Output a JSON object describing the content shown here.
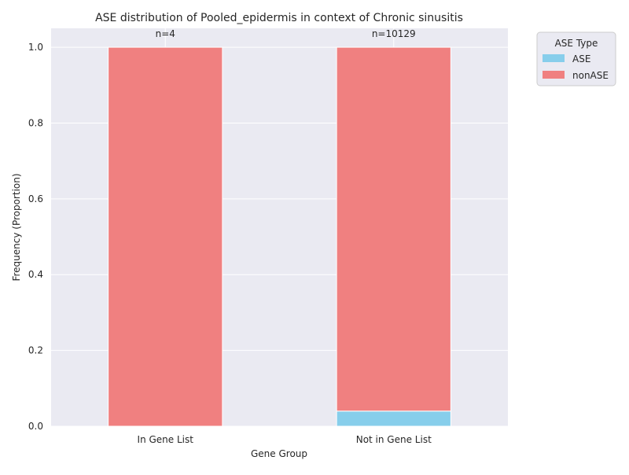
{
  "chart_data": {
    "type": "bar",
    "stacked": true,
    "title": "ASE distribution of Pooled_epidermis in context of Chronic sinusitis",
    "xlabel": "Gene Group",
    "ylabel": "Frequency (Proportion)",
    "categories": [
      "In Gene List",
      "Not in Gene List"
    ],
    "series": [
      {
        "name": "ASE",
        "color": "#87ceeb",
        "values": [
          0.0,
          0.04
        ]
      },
      {
        "name": "nonASE",
        "color": "#f08080",
        "values": [
          1.0,
          0.96
        ]
      }
    ],
    "annotations": [
      "n=4",
      "n=10129"
    ],
    "ylim": [
      0,
      1.05
    ],
    "yticks": [
      "0.0",
      "0.2",
      "0.4",
      "0.6",
      "0.8",
      "1.0"
    ],
    "grid": true,
    "legend": {
      "title": "ASE Type",
      "placement": "outside-top-right"
    },
    "colors": {
      "plot_background": "#eaeaf2",
      "grid": "#ffffff"
    }
  }
}
